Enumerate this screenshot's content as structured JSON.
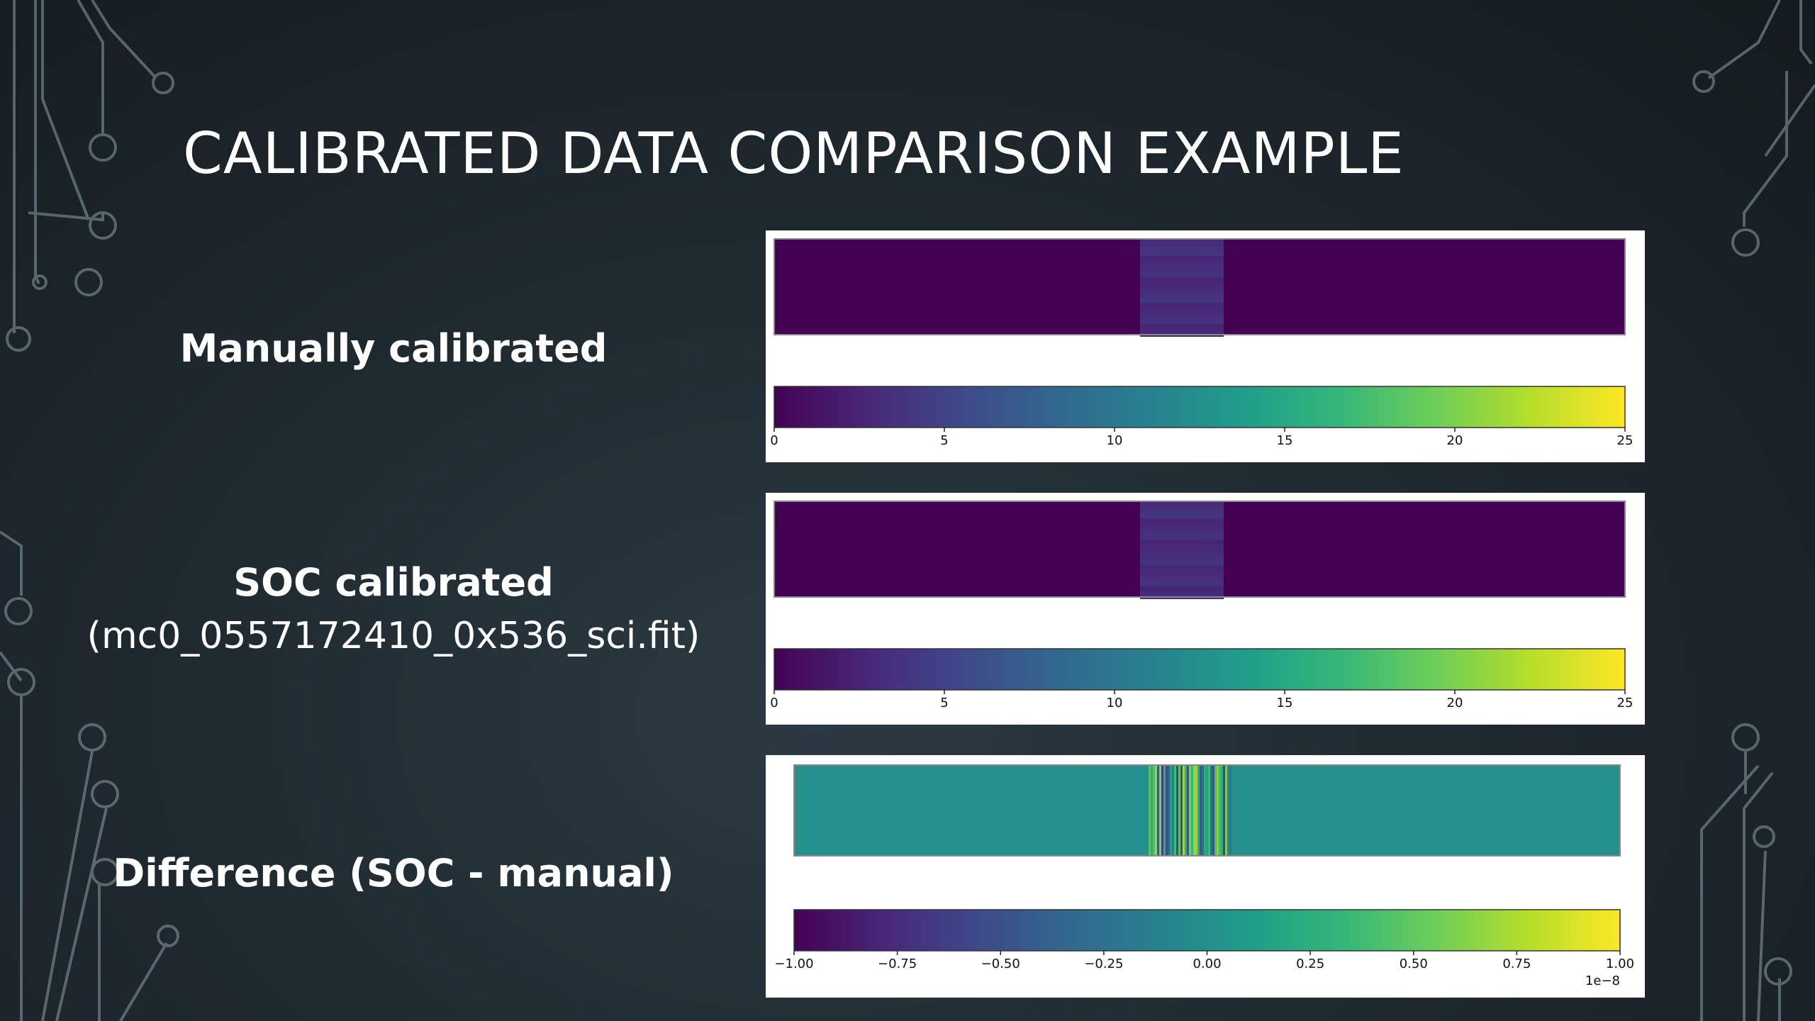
{
  "slide": {
    "title": "CALIBRATED DATA COMPARISON EXAMPLE",
    "labels": {
      "manual": "Manually calibrated",
      "soc_title": "SOC calibrated",
      "soc_file": "(mc0_0557172410_0x536_sci.fit)",
      "difference": "Difference (SOC - manual)"
    }
  },
  "colors": {
    "viridis_low": "#440154",
    "viridis_mid": "#21918c",
    "viridis_high": "#fde725"
  },
  "chart_data": [
    {
      "type": "heatmap",
      "name": "Manually calibrated",
      "colormap": "viridis",
      "colorbar_ticks": [
        "0",
        "5",
        "10",
        "15",
        "20",
        "25"
      ],
      "vmin": 0,
      "vmax": 25,
      "background_value": 0,
      "band": {
        "value_approx": 2.5
      }
    },
    {
      "type": "heatmap",
      "name": "SOC calibrated",
      "colormap": "viridis",
      "colorbar_ticks": [
        "0",
        "5",
        "10",
        "15",
        "20",
        "25"
      ],
      "vmin": 0,
      "vmax": 25,
      "background_value": 0,
      "band": {
        "value_approx": 2.5
      }
    },
    {
      "type": "heatmap",
      "name": "Difference (SOC - manual)",
      "colormap": "viridis",
      "colorbar_ticks": [
        "−1.00",
        "−0.75",
        "−0.50",
        "−0.25",
        "0.00",
        "0.25",
        "0.50",
        "0.75",
        "1.00"
      ],
      "vmin": -1.0,
      "vmax": 1.0,
      "offset_label": "1e−8",
      "background_value": 0.0,
      "band": {
        "value_approx": "mixed"
      }
    }
  ]
}
